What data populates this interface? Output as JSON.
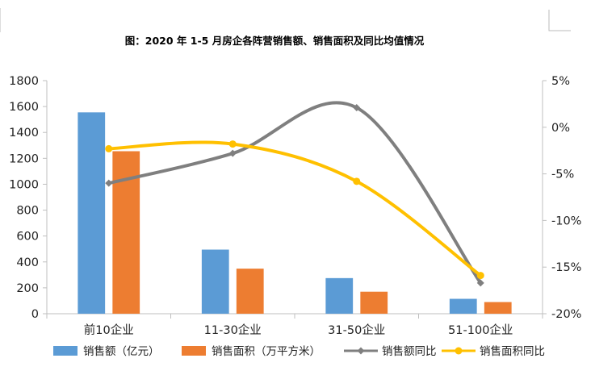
{
  "chart_data": {
    "type": "bar",
    "title": "图：2020 年 1-5 月房企各阵营销售额、销售面积及同比均值情况",
    "categories": [
      "前10企业",
      "11-30企业",
      "31-50企业",
      "51-100企业"
    ],
    "series": [
      {
        "name": "销售额（亿元）",
        "type": "bar",
        "axis": "left",
        "color": "#5B9BD5",
        "values": [
          1555,
          495,
          275,
          115
        ]
      },
      {
        "name": "销售面积（万平方米）",
        "type": "bar",
        "axis": "left",
        "color": "#ED7D31",
        "values": [
          1255,
          348,
          170,
          90
        ]
      },
      {
        "name": "销售额同比",
        "type": "line",
        "smooth": true,
        "marker": "diamond",
        "axis": "right",
        "color": "#7F7F7F",
        "values": [
          -6.0,
          -2.8,
          2.1,
          -16.7
        ]
      },
      {
        "name": "销售面积同比",
        "type": "line",
        "smooth": true,
        "marker": "circle",
        "axis": "right",
        "color": "#FFC000",
        "values": [
          -2.3,
          -1.8,
          -5.8,
          -15.9
        ]
      }
    ],
    "y_left": {
      "ylim": [
        0,
        1800
      ],
      "ticks": [
        "1800",
        "1600",
        "1400",
        "1200",
        "1000",
        "800",
        "600",
        "400",
        "200",
        "0"
      ]
    },
    "y_right": {
      "unit": "%",
      "ylim": [
        -20,
        5
      ],
      "ticks": [
        "5%",
        "0%",
        "-5%",
        "-10%",
        "-15%",
        "-20%"
      ]
    },
    "grid": false,
    "legend_position": "bottom"
  }
}
